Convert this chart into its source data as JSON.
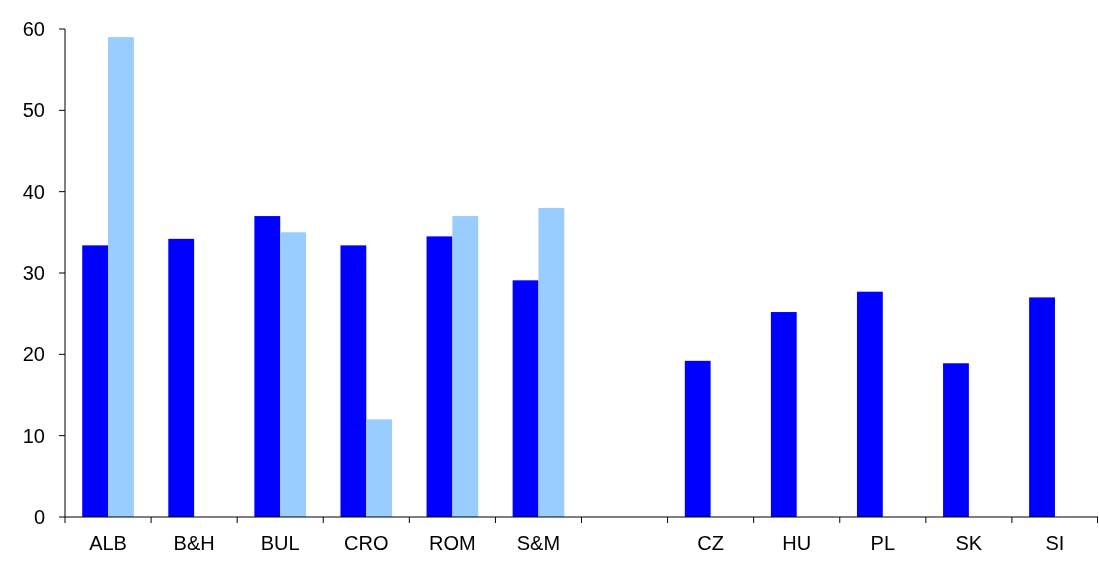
{
  "chart_data": {
    "type": "bar",
    "categories": [
      "ALB",
      "B&H",
      "BUL",
      "CRO",
      "ROM",
      "S&M",
      null,
      "CZ",
      "HU",
      "PL",
      "SK",
      "SI"
    ],
    "series": [
      {
        "color": "#0000ff",
        "values": [
          33.4,
          34.2,
          37.0,
          33.4,
          34.5,
          29.1,
          null,
          19.2,
          25.2,
          27.7,
          18.9,
          27.0
        ]
      },
      {
        "color": "#99ccff",
        "values": [
          59.0,
          null,
          35.0,
          12.0,
          37.0,
          38.0,
          null,
          null,
          null,
          null,
          null,
          null
        ]
      }
    ],
    "ylim": [
      0,
      60
    ],
    "yticks": [
      0,
      10,
      20,
      30,
      40,
      50,
      60
    ]
  }
}
